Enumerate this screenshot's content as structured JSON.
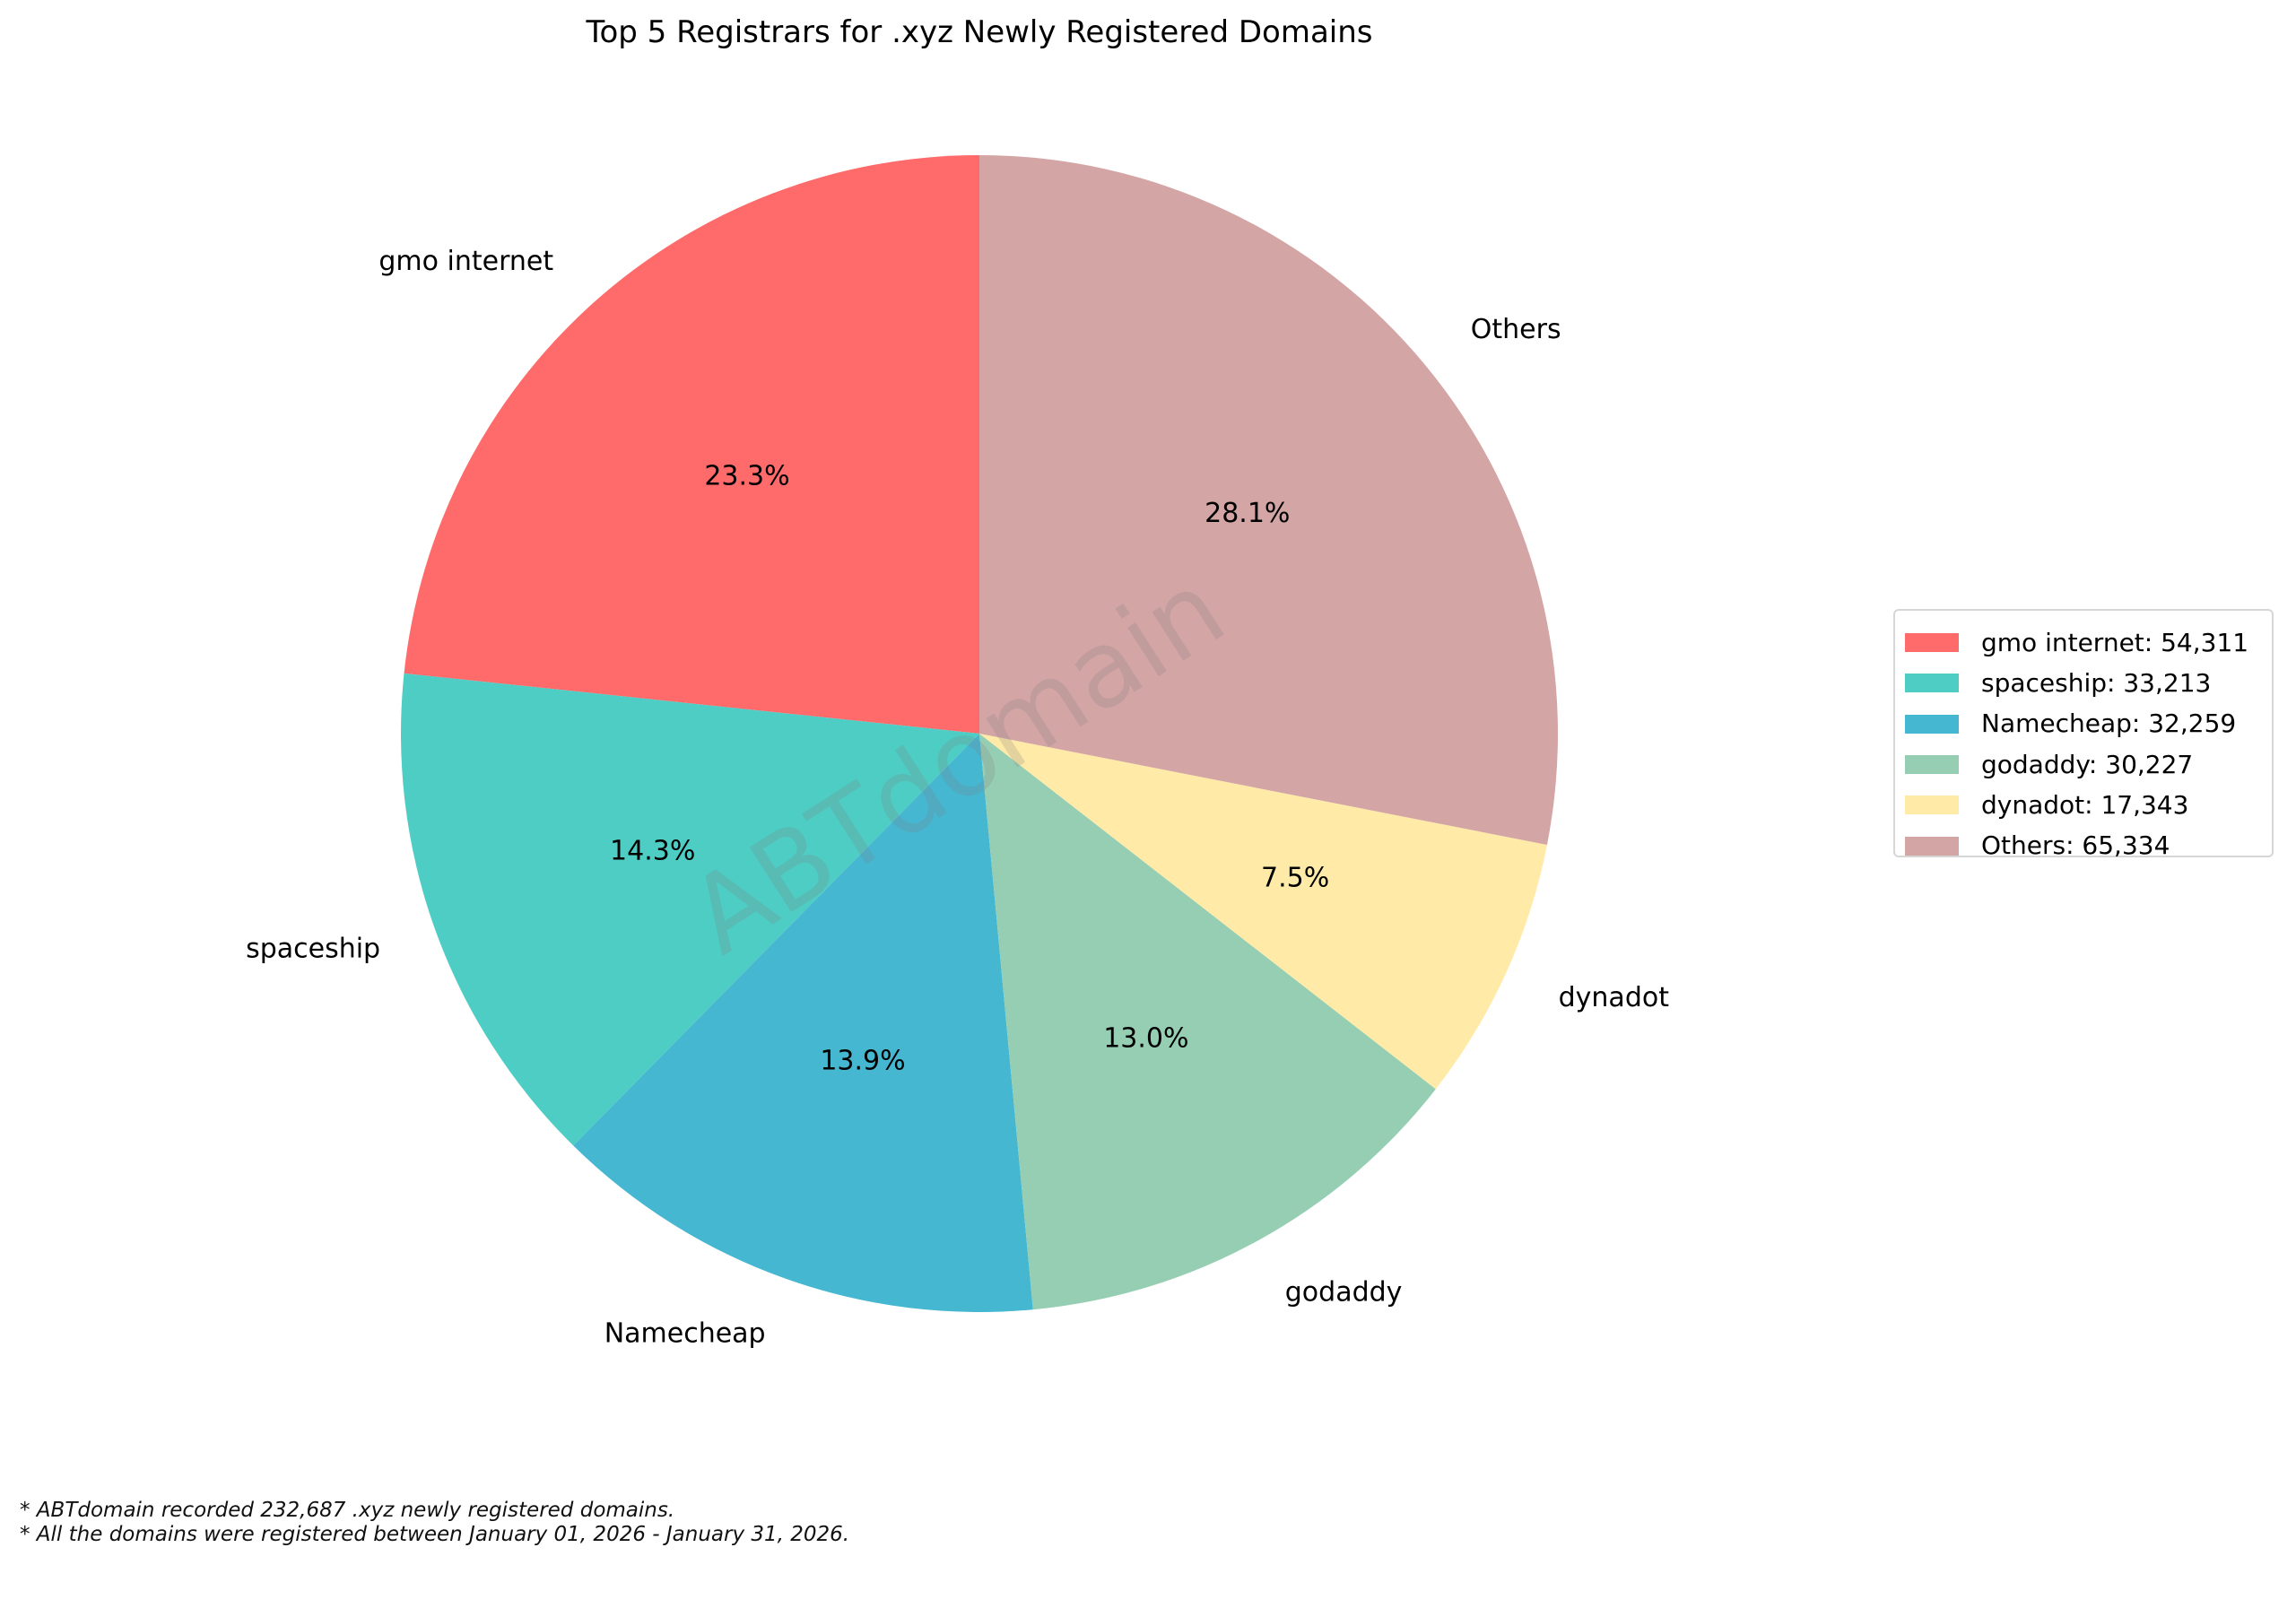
{
  "title": "Top 5 Registrars for .xyz Newly Registered Domains",
  "watermark": "ABTdomain",
  "footnotes": [
    "* ABTdomain recorded 232,687 .xyz newly registered domains.",
    "* All the domains were registered between January 01, 2026 - January 31, 2026."
  ],
  "legend": {
    "items": [
      {
        "label": "gmo internet: 54,311",
        "color": "#FF6B6B"
      },
      {
        "label": "spaceship: 33,213",
        "color": "#4ECDC4"
      },
      {
        "label": "Namecheap: 32,259",
        "color": "#45B7D1"
      },
      {
        "label": "godaddy: 30,227",
        "color": "#96CEB4"
      },
      {
        "label": "dynadot: 17,343",
        "color": "#FFEAA7"
      },
      {
        "label": "Others: 65,334",
        "color": "#D4A5A5"
      }
    ]
  },
  "chart_data": {
    "type": "pie",
    "title": "Top 5 Registrars for .xyz Newly Registered Domains",
    "categories": [
      "gmo internet",
      "spaceship",
      "Namecheap",
      "godaddy",
      "dynadot",
      "Others"
    ],
    "values": [
      54311,
      33213,
      32259,
      30227,
      17343,
      65334
    ],
    "percent_labels": [
      "23.3%",
      "14.3%",
      "13.9%",
      "13.0%",
      "7.5%",
      "28.1%"
    ],
    "colors": [
      "#FF6B6B",
      "#4ECDC4",
      "#45B7D1",
      "#96CEB4",
      "#FFEAA7",
      "#D4A5A5"
    ],
    "total": 232687,
    "start_angle": 90,
    "direction": "counterclockwise",
    "legend_position": "right",
    "xlabel": "",
    "ylabel": ""
  }
}
